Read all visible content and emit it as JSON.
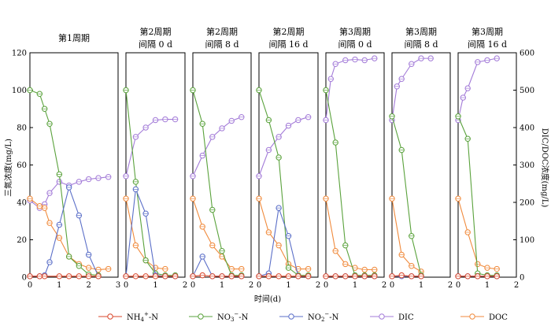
{
  "chart_data": {
    "type": "line",
    "xlabel": "时间(d)",
    "ylabel_left": "三氮浓度(mg/L)",
    "ylabel_right": "DIC/DOC浓度(mg/L)",
    "ylim_left": [
      0,
      120
    ],
    "ylim_right": [
      0,
      600
    ],
    "yticks_left": [
      "0",
      "20",
      "40",
      "60",
      "80",
      "100",
      "120"
    ],
    "yticks_right": [
      "0",
      "100",
      "200",
      "300",
      "400",
      "500",
      "600"
    ],
    "colors": {
      "NH4": "#d9472b",
      "NO3": "#5aa23c",
      "NO2": "#5b6fc8",
      "DIC": "#a37bd8",
      "DOC": "#f08a3c"
    },
    "legend": [
      {
        "key": "NH4",
        "label_main": "NH",
        "sub": "4",
        "sup": "+",
        "tail": "-N"
      },
      {
        "key": "NO3",
        "label_main": "NO",
        "sub": "3",
        "sup": "−",
        "tail": "-N"
      },
      {
        "key": "NO2",
        "label_main": "NO",
        "sub": "2",
        "sup": "−",
        "tail": "-N"
      },
      {
        "key": "DIC",
        "label_main": "DIC",
        "sub": "",
        "sup": "",
        "tail": ""
      },
      {
        "key": "DOC",
        "label_main": "DOC",
        "sub": "",
        "sup": "",
        "tail": ""
      }
    ],
    "panels": [
      {
        "title": [
          "第1周期"
        ],
        "xlim": [
          0,
          3
        ],
        "xticks": [
          "0",
          "1",
          "2",
          "3"
        ],
        "series": {
          "NH4": {
            "x": [
              0,
              0.33,
              0.5,
              1.0,
              1.33,
              1.67,
              2.0,
              2.33
            ],
            "y": [
              0.5,
              0.5,
              0.5,
              0.5,
              0.5,
              0.5,
              0.5,
              0.5
            ]
          },
          "NO3": {
            "x": [
              0,
              0.33,
              0.5,
              0.67,
              1.0,
              1.33,
              1.67,
              2.0,
              2.33
            ],
            "y": [
              100,
              98,
              90,
              82,
              55,
              11,
              6,
              1.5,
              1
            ]
          },
          "NO2": {
            "x": [
              0,
              0.33,
              0.5,
              0.67,
              1.0,
              1.33,
              1.67,
              2.0,
              2.33
            ],
            "y": [
              0.5,
              0.5,
              1,
              8,
              28,
              48,
              33,
              12,
              0.5
            ]
          },
          "DIC": {
            "x": [
              0,
              0.33,
              0.5,
              0.67,
              1.0,
              1.33,
              1.67,
              2.0,
              2.33,
              2.67
            ],
            "y": [
              205,
              185,
              195,
              225,
              255,
              245,
              255,
              262,
              265,
              268
            ]
          },
          "DOC": {
            "x": [
              0,
              0.33,
              0.5,
              0.67,
              1.0,
              1.33,
              1.67,
              2.0,
              2.33,
              2.67
            ],
            "y": [
              210,
              190,
              185,
              145,
              105,
              55,
              35,
              25,
              20,
              22
            ]
          }
        }
      },
      {
        "title": [
          "第2周期",
          "间隔 0 d"
        ],
        "xlim": [
          0,
          2
        ],
        "xticks": [
          "0",
          "1",
          "2"
        ],
        "series": {
          "NH4": {
            "x": [
              0,
              0.33,
              0.67,
              1.0,
              1.33,
              1.67
            ],
            "y": [
              0.5,
              0.5,
              0.5,
              0.5,
              0.5,
              0.5
            ]
          },
          "NO3": {
            "x": [
              0,
              0.33,
              0.67,
              1.0,
              1.33,
              1.67
            ],
            "y": [
              100,
              51,
              9,
              2,
              1,
              1
            ]
          },
          "NO2": {
            "x": [
              0,
              0.33,
              0.67,
              1.0,
              1.33,
              1.67
            ],
            "y": [
              0.5,
              47,
              34,
              1,
              0.5,
              0.5
            ]
          },
          "DIC": {
            "x": [
              0,
              0.33,
              0.67,
              1.0,
              1.33,
              1.67
            ],
            "y": [
              270,
              375,
              400,
              420,
              422,
              422
            ]
          },
          "DOC": {
            "x": [
              0,
              0.33,
              0.67,
              1.0,
              1.33
            ],
            "y": [
              210,
              85,
              45,
              25,
              22
            ]
          }
        }
      },
      {
        "title": [
          "第2周期",
          "间隔 8 d"
        ],
        "xlim": [
          0,
          2
        ],
        "xticks": [
          "0",
          "1",
          "2"
        ],
        "series": {
          "NH4": {
            "x": [
              0,
              0.33,
              0.67,
              1.0,
              1.33,
              1.67
            ],
            "y": [
              0.5,
              1,
              0.5,
              0.5,
              0.5,
              0.5
            ]
          },
          "NO3": {
            "x": [
              0,
              0.33,
              0.67,
              1.0,
              1.33,
              1.67
            ],
            "y": [
              100,
              82,
              36,
              14,
              1,
              1
            ]
          },
          "NO2": {
            "x": [
              0,
              0.33,
              0.67,
              1.0,
              1.33,
              1.67
            ],
            "y": [
              0.5,
              11,
              0.5,
              0.5,
              0.5,
              0.5
            ]
          },
          "DIC": {
            "x": [
              0,
              0.33,
              0.67,
              1.0,
              1.33,
              1.67
            ],
            "y": [
              270,
              325,
              375,
              398,
              418,
              428
            ]
          },
          "DOC": {
            "x": [
              0,
              0.33,
              0.67,
              1.0,
              1.33,
              1.67
            ],
            "y": [
              210,
              135,
              85,
              55,
              22,
              22
            ]
          }
        }
      },
      {
        "title": [
          "第2周期",
          "间隔 16 d"
        ],
        "xlim": [
          0,
          2
        ],
        "xticks": [
          "0",
          "1",
          "2"
        ],
        "series": {
          "NH4": {
            "x": [
              0,
              0.33,
              0.67,
              1.0,
              1.33,
              1.67
            ],
            "y": [
              0.5,
              0.5,
              0.5,
              0.5,
              0.5,
              0.5
            ]
          },
          "NO3": {
            "x": [
              0,
              0.33,
              0.67,
              1.0,
              1.33,
              1.67
            ],
            "y": [
              100,
              84,
              64,
              5,
              1,
              1
            ]
          },
          "NO2": {
            "x": [
              0,
              0.33,
              0.67,
              1.0,
              1.33,
              1.67
            ],
            "y": [
              0.5,
              2,
              37,
              22,
              0.5,
              0.5
            ]
          },
          "DIC": {
            "x": [
              0,
              0.33,
              0.67,
              1.0,
              1.33,
              1.67
            ],
            "y": [
              270,
              340,
              375,
              405,
              420,
              428
            ]
          },
          "DOC": {
            "x": [
              0,
              0.33,
              0.67,
              1.0,
              1.33,
              1.67
            ],
            "y": [
              210,
              120,
              85,
              35,
              22,
              22
            ]
          }
        }
      },
      {
        "title": [
          "第3周期",
          "间隔 0 d"
        ],
        "xlim": [
          0,
          2
        ],
        "xticks": [
          "0",
          "1",
          "2"
        ],
        "series": {
          "NH4": {
            "x": [
              0,
              0.33,
              0.67,
              1.0,
              1.33,
              1.67
            ],
            "y": [
              0.5,
              0.5,
              0.5,
              0.5,
              0.5,
              0.5
            ]
          },
          "NO3": {
            "x": [
              0,
              0.33,
              0.67,
              1.0,
              1.33,
              1.67
            ],
            "y": [
              100,
              72,
              17,
              1,
              1,
              1
            ]
          },
          "NO2": {
            "x": [
              0,
              0.33,
              0.67,
              1.0,
              1.33,
              1.67
            ],
            "y": [
              0.5,
              0.5,
              0.5,
              0.5,
              0.5,
              0.5
            ]
          },
          "DIC": {
            "x": [
              0,
              0.17,
              0.33,
              0.67,
              1.0,
              1.33,
              1.67
            ],
            "y": [
              420,
              530,
              570,
              580,
              582,
              580,
              585
            ]
          },
          "DOC": {
            "x": [
              0,
              0.33,
              0.67,
              1.0,
              1.33,
              1.67
            ],
            "y": [
              210,
              70,
              35,
              25,
              20,
              20
            ]
          }
        }
      },
      {
        "title": [
          "第3周期",
          "间隔 8 d"
        ],
        "xlim": [
          0,
          2
        ],
        "xticks": [
          "0",
          "1",
          "2"
        ],
        "series": {
          "NH4": {
            "x": [
              0,
              0.33,
              0.67,
              1.0
            ],
            "y": [
              0.5,
              1,
              0.5,
              0.5
            ]
          },
          "NO3": {
            "x": [
              0,
              0.33,
              0.67,
              1.0
            ],
            "y": [
              86,
              68,
              22,
              1
            ]
          },
          "NO2": {
            "x": [
              0,
              0.33,
              0.67,
              1.0
            ],
            "y": [
              0.5,
              0.5,
              0.5,
              0.5
            ]
          },
          "DIC": {
            "x": [
              0,
              0.17,
              0.33,
              0.67,
              1.0,
              1.33
            ],
            "y": [
              420,
              510,
              530,
              570,
              585,
              585
            ]
          },
          "DOC": {
            "x": [
              0,
              0.33,
              0.67,
              1.0
            ],
            "y": [
              210,
              60,
              30,
              15
            ]
          }
        }
      },
      {
        "title": [
          "第3周期",
          "间隔 16 d"
        ],
        "xlim": [
          0,
          2
        ],
        "xticks": [
          "0",
          "1",
          "2"
        ],
        "series": {
          "NH4": {
            "x": [
              0,
              0.33,
              0.67,
              1.0,
              1.33
            ],
            "y": [
              0.5,
              0.5,
              0.5,
              0.5,
              0.5
            ]
          },
          "NO3": {
            "x": [
              0,
              0.33,
              0.67,
              1.0,
              1.33
            ],
            "y": [
              86,
              74,
              2,
              1,
              1
            ]
          },
          "NO2": {
            "x": [
              0,
              0.33,
              0.67,
              1.0,
              1.33
            ],
            "y": [
              0.5,
              0.5,
              0.5,
              0.5,
              0.5
            ]
          },
          "DIC": {
            "x": [
              0,
              0.17,
              0.33,
              0.67,
              1.0,
              1.33
            ],
            "y": [
              420,
              480,
              505,
              575,
              580,
              585
            ]
          },
          "DOC": {
            "x": [
              0,
              0.33,
              0.67,
              1.0,
              1.33
            ],
            "y": [
              210,
              120,
              35,
              25,
              22
            ]
          }
        }
      }
    ]
  }
}
